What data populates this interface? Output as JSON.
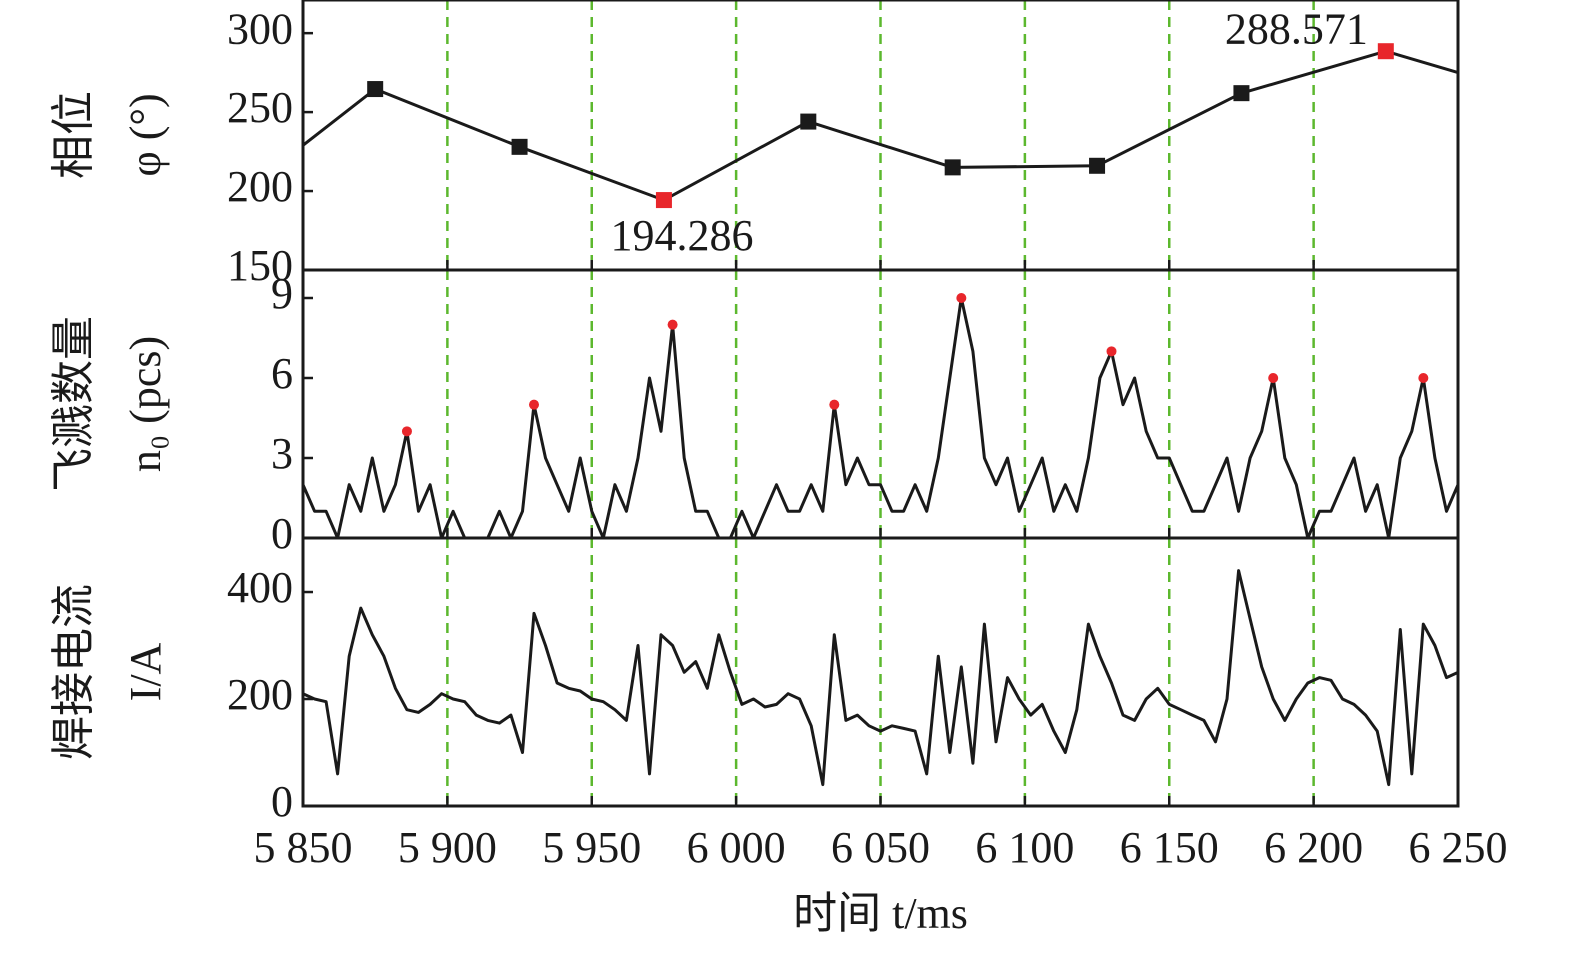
{
  "chart_data": [
    {
      "type": "line",
      "ylabel": [
        "相位",
        "φ (°)"
      ],
      "xlim": [
        5850,
        6250
      ],
      "xticks": [
        5850,
        5900,
        5950,
        6000,
        6050,
        6100,
        6150,
        6200,
        6250
      ],
      "ylim": [
        150,
        321
      ],
      "yticks": [
        150,
        200,
        250,
        300
      ],
      "grid": true,
      "grid_color": "#5cb82e",
      "series": [
        {
          "color": "#1a1a1a",
          "marker": "square",
          "x": [
            5850,
            5875,
            5925,
            5975,
            6025,
            6075,
            6125,
            6175,
            6225,
            6250
          ],
          "values": [
            229,
            264.6,
            228,
            194.286,
            244,
            215,
            216,
            262,
            288.571,
            275
          ],
          "marker_colors": [
            null,
            "#1a1a1a",
            "#1a1a1a",
            "#e8262b",
            "#1a1a1a",
            "#1a1a1a",
            "#1a1a1a",
            "#1a1a1a",
            "#e8262b",
            null
          ],
          "value_labels": [
            null,
            null,
            null,
            "194.286",
            null,
            null,
            null,
            null,
            "288.571",
            null
          ]
        }
      ]
    },
    {
      "type": "line",
      "ylabel": [
        "飞溅数量",
        "n₀ (pcs)"
      ],
      "xlim": [
        5850,
        6250
      ],
      "xticks": [
        5850,
        5900,
        5950,
        6000,
        6050,
        6100,
        6150,
        6200,
        6250
      ],
      "ylim": [
        0,
        10.05
      ],
      "yticks": [
        0,
        3,
        6,
        9
      ],
      "grid": true,
      "grid_color": "#5cb82e",
      "series": [
        {
          "color": "#1a1a1a",
          "x": [
            5850,
            5854,
            5858,
            5862,
            5866,
            5870,
            5874,
            5878,
            5882,
            5886,
            5890,
            5894,
            5898,
            5902,
            5906,
            5910,
            5914,
            5918,
            5922,
            5926,
            5930,
            5934,
            5938,
            5942,
            5946,
            5950,
            5954,
            5958,
            5962,
            5966,
            5970,
            5974,
            5978,
            5982,
            5986,
            5990,
            5994,
            5998,
            6002,
            6006,
            6010,
            6014,
            6018,
            6022,
            6026,
            6030,
            6034,
            6038,
            6042,
            6046,
            6050,
            6054,
            6058,
            6062,
            6066,
            6070,
            6074,
            6078,
            6082,
            6086,
            6090,
            6094,
            6098,
            6102,
            6106,
            6110,
            6114,
            6118,
            6122,
            6126,
            6130,
            6134,
            6138,
            6142,
            6146,
            6150,
            6154,
            6158,
            6162,
            6166,
            6170,
            6174,
            6178,
            6182,
            6186,
            6190,
            6194,
            6198,
            6202,
            6206,
            6210,
            6214,
            6218,
            6222,
            6226,
            6230,
            6234,
            6238,
            6242,
            6246,
            6250
          ],
          "values": [
            2,
            1,
            1,
            0,
            2,
            1,
            3,
            1,
            2,
            4,
            1,
            2,
            0,
            1,
            0,
            0,
            0,
            1,
            0,
            1,
            5,
            3,
            2,
            1,
            3,
            1,
            0,
            2,
            1,
            3,
            6,
            4,
            8,
            3,
            1,
            1,
            0,
            0,
            1,
            0,
            1,
            2,
            1,
            1,
            2,
            1,
            5,
            2,
            3,
            2,
            2,
            1,
            1,
            2,
            1,
            3,
            6,
            9,
            7,
            3,
            2,
            3,
            1,
            2,
            3,
            1,
            2,
            1,
            3,
            6,
            7,
            5,
            6,
            4,
            3,
            3,
            2,
            1,
            1,
            2,
            3,
            1,
            3,
            4,
            6,
            3,
            2,
            0,
            1,
            1,
            2,
            3,
            1,
            2,
            0,
            3,
            4,
            6,
            3,
            1,
            2
          ]
        },
        {
          "color": "#e8262b",
          "marker": "circle",
          "line": false,
          "x": [
            5886,
            5930,
            5978,
            6034,
            6078,
            6130,
            6186,
            6238
          ],
          "values": [
            4,
            5,
            8,
            5,
            9,
            7,
            6,
            6
          ]
        }
      ]
    },
    {
      "type": "line",
      "ylabel": [
        "焊接电流",
        "I/A"
      ],
      "xlabel": "时间 t/ms",
      "xlim": [
        5850,
        6250
      ],
      "xticks": [
        {
          "value": 5850,
          "label": "5 850"
        },
        {
          "value": 5900,
          "label": "5 900"
        },
        {
          "value": 5950,
          "label": "5 950"
        },
        {
          "value": 6000,
          "label": "6 000"
        },
        {
          "value": 6050,
          "label": "6 050"
        },
        {
          "value": 6100,
          "label": "6 100"
        },
        {
          "value": 6150,
          "label": "6 150"
        },
        {
          "value": 6200,
          "label": "6 200"
        },
        {
          "value": 6250,
          "label": "6 250"
        }
      ],
      "ylim": [
        0,
        501
      ],
      "yticks": [
        0,
        200,
        400
      ],
      "grid": true,
      "grid_color": "#5cb82e",
      "series": [
        {
          "color": "#1a1a1a",
          "x": [
            5850,
            5854,
            5858,
            5862,
            5866,
            5870,
            5874,
            5878,
            5882,
            5886,
            5890,
            5894,
            5898,
            5902,
            5906,
            5910,
            5914,
            5918,
            5922,
            5926,
            5930,
            5934,
            5938,
            5942,
            5946,
            5950,
            5954,
            5958,
            5962,
            5966,
            5970,
            5974,
            5978,
            5982,
            5986,
            5990,
            5994,
            5998,
            6002,
            6006,
            6010,
            6014,
            6018,
            6022,
            6026,
            6030,
            6034,
            6038,
            6042,
            6046,
            6050,
            6054,
            6058,
            6062,
            6066,
            6070,
            6074,
            6078,
            6082,
            6086,
            6090,
            6094,
            6098,
            6102,
            6106,
            6110,
            6114,
            6118,
            6122,
            6126,
            6130,
            6134,
            6138,
            6142,
            6146,
            6150,
            6154,
            6158,
            6162,
            6166,
            6170,
            6174,
            6178,
            6182,
            6186,
            6190,
            6194,
            6198,
            6202,
            6206,
            6210,
            6214,
            6218,
            6222,
            6226,
            6230,
            6234,
            6238,
            6242,
            6246,
            6250
          ],
          "values": [
            210,
            200,
            195,
            60,
            280,
            370,
            320,
            280,
            220,
            180,
            175,
            190,
            210,
            200,
            195,
            170,
            160,
            155,
            170,
            100,
            360,
            300,
            230,
            220,
            215,
            200,
            195,
            180,
            160,
            300,
            60,
            320,
            300,
            250,
            270,
            220,
            320,
            250,
            190,
            200,
            185,
            190,
            210,
            200,
            150,
            40,
            320,
            160,
            170,
            150,
            140,
            150,
            145,
            140,
            60,
            280,
            100,
            260,
            80,
            340,
            120,
            240,
            200,
            170,
            190,
            140,
            100,
            180,
            340,
            280,
            230,
            170,
            160,
            200,
            220,
            190,
            180,
            170,
            160,
            120,
            200,
            440,
            350,
            260,
            200,
            160,
            200,
            230,
            240,
            235,
            200,
            190,
            170,
            140,
            40,
            330,
            60,
            340,
            300,
            240,
            250
          ]
        }
      ]
    }
  ]
}
